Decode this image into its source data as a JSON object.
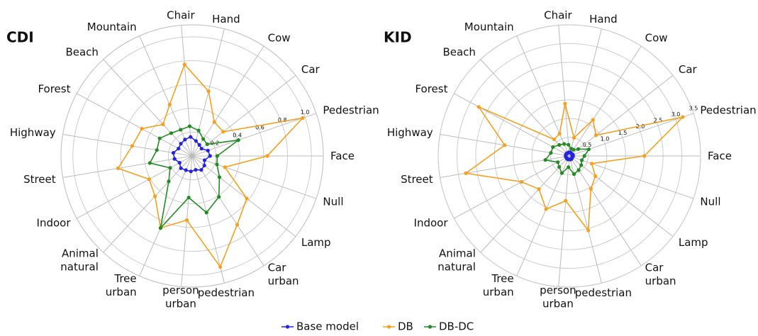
{
  "chart_data": [
    {
      "type": "radar",
      "title": "CDI",
      "categories": [
        "Face",
        "Pedestrian",
        "Car",
        "Cow",
        "Hand",
        "Chair",
        "Mountain",
        "Beach",
        "Forest",
        "Highway",
        "Street",
        "Indoor",
        "Animal natural",
        "Tree urban",
        "person urban",
        "pedestrian",
        "Car urban",
        "Lamp",
        "Null"
      ],
      "rlim": [
        0,
        1.1
      ],
      "rticks": [
        0.2,
        0.4,
        0.6,
        0.8,
        {
          "value": 1.0,
          "label": "1.0"
        }
      ],
      "grid": true,
      "series": [
        {
          "name": "Base model",
          "color": "#2424e0",
          "values": [
            0.15,
            0.14,
            0.1,
            0.11,
            0.13,
            0.16,
            0.15,
            0.14,
            0.13,
            0.16,
            0.15,
            0.12,
            0.14,
            0.13,
            0.13,
            0.12,
            0.14,
            0.13,
            0.11
          ]
        },
        {
          "name": "DB",
          "color": "#f5a01f",
          "values": [
            0.63,
            0.98,
            0.33,
            0.34,
            0.56,
            0.77,
            0.47,
            0.36,
            0.48,
            0.51,
            0.63,
            0.41,
            0.46,
            0.66,
            0.54,
            0.96,
            0.69,
            0.58,
            0.29
          ]
        },
        {
          "name": "DB-DC",
          "color": "#238b23",
          "values": [
            0.21,
            0.41,
            0.16,
            0.17,
            0.22,
            0.25,
            0.24,
            0.26,
            0.31,
            0.3,
            0.36,
            0.21,
            0.29,
            0.66,
            0.35,
            0.49,
            0.41,
            0.29,
            0.22
          ]
        }
      ]
    },
    {
      "type": "radar",
      "title": "KID",
      "categories": [
        "Face",
        "Pedestrian",
        "Car",
        "Cow",
        "Hand",
        "Chair",
        "Mountain",
        "Beach",
        "Forest",
        "Highway",
        "Street",
        "Indoor",
        "Animal natural",
        "Tree urban",
        "person urban",
        "pedestrian",
        "Car urban",
        "Lamp",
        "Null"
      ],
      "rlim": [
        0,
        3.5
      ],
      "rticks": [
        0.5,
        {
          "value": 1.0,
          "label": "1.0"
        },
        1.5,
        {
          "value": 2.0,
          "label": "2.0"
        },
        2.5,
        {
          "value": 3.0,
          "label": "3.0"
        },
        3.5
      ],
      "grid": true,
      "series": [
        {
          "name": "Base model",
          "color": "#2424e0",
          "values": [
            0.1,
            0.1,
            0.08,
            0.09,
            0.1,
            0.1,
            0.09,
            0.1,
            0.1,
            0.1,
            0.1,
            0.09,
            0.1,
            0.1,
            0.09,
            0.1,
            0.1,
            0.09,
            0.08
          ]
        },
        {
          "name": "DB",
          "color": "#f5a01f",
          "values": [
            2.0,
            3.2,
            0.9,
            1.15,
            0.5,
            1.4,
            0.65,
            0.6,
            2.75,
            1.75,
            2.8,
            1.45,
            1.2,
            1.55,
            1.2,
            2.05,
            1.05,
            0.88,
            0.63
          ]
        },
        {
          "name": "DB-DC",
          "color": "#238b23",
          "values": [
            0.4,
            0.55,
            0.3,
            0.2,
            0.2,
            0.3,
            0.35,
            0.4,
            0.5,
            0.5,
            0.65,
            0.35,
            0.4,
            0.5,
            0.3,
            0.5,
            0.45,
            0.4,
            0.35
          ]
        }
      ]
    }
  ]
}
